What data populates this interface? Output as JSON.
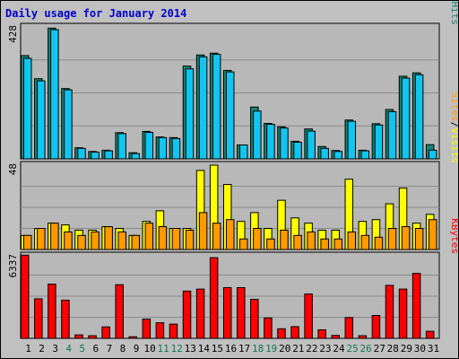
{
  "chart_data": {
    "type": "bar",
    "title": "Daily usage for January 2014",
    "categories": [
      "1",
      "2",
      "3",
      "4",
      "5",
      "6",
      "7",
      "8",
      "9",
      "10",
      "11",
      "12",
      "13",
      "14",
      "15",
      "16",
      "17",
      "18",
      "19",
      "20",
      "21",
      "22",
      "23",
      "24",
      "25",
      "26",
      "27",
      "28",
      "29",
      "30",
      "31"
    ],
    "weekend_days": [
      "4",
      "5",
      "11",
      "12",
      "18",
      "19",
      "25",
      "26"
    ],
    "colors": {
      "background": "#c0c0c0",
      "plot_bg": "#b8b8b8",
      "title": "#0000cc",
      "axis_text": "#000000",
      "weekday_label": "#000000",
      "weekend_label": "#117755",
      "hits": "#118877",
      "files": "#11c5f0",
      "pages": "#22ddff",
      "visits": "#ffff00",
      "sites": "#ff9900",
      "kbytes": "#ff0000"
    },
    "panels": [
      {
        "id": "hits-files-pages",
        "ymax_label": "428",
        "ylim": [
          0,
          428
        ],
        "legend": [
          {
            "text": "Pages",
            "color": "#22ddff"
          },
          {
            "text": "/",
            "color": "#000000"
          },
          {
            "text": "Files",
            "color": "#11c5f0"
          },
          {
            "text": "/",
            "color": "#000000"
          },
          {
            "text": "Hits",
            "color": "#118877"
          }
        ],
        "series": [
          {
            "name": "Hits",
            "values": [
              335,
              260,
              424,
              228,
              36,
              24,
              28,
              85,
              20,
              89,
              71,
              69,
              301,
              337,
              343,
              287,
              45,
              168,
              115,
              104,
              57,
              97,
              40,
              27,
              126,
              28,
              114,
              160,
              268,
              279,
              46
            ]
          },
          {
            "name": "Files",
            "values": [
              326,
              253,
              419,
              224,
              34,
              22,
              26,
              82,
              17,
              86,
              69,
              66,
              292,
              331,
              339,
              282,
              45,
              155,
              112,
              100,
              54,
              90,
              34,
              24,
              122,
              26,
              110,
              153,
              262,
              273,
              28
            ]
          }
        ]
      },
      {
        "id": "visits-sites",
        "ymax_label": "48",
        "ylim": [
          0,
          48
        ],
        "legend": [
          {
            "text": "Sites",
            "color": "#ff9900"
          },
          {
            "text": "/",
            "color": "#000000"
          },
          {
            "text": "Visits",
            "color": "#ffff00"
          }
        ],
        "series": [
          {
            "name": "Visits",
            "values": [
              8,
              12,
              15,
              14,
              11,
              11,
              13,
              12,
              8,
              16,
              22,
              12,
              12,
              45,
              48,
              37,
              16,
              21,
              12,
              28,
              18,
              15,
              11,
              11,
              40,
              16,
              17,
              26,
              35,
              15,
              20
            ]
          },
          {
            "name": "Sites",
            "values": [
              8,
              12,
              15,
              10,
              8,
              10,
              13,
              10,
              8,
              15,
              13,
              12,
              11,
              21,
              15,
              17,
              6,
              12,
              6,
              11,
              8,
              10,
              6,
              6,
              10,
              8,
              7,
              12,
              13,
              12,
              17
            ]
          }
        ]
      },
      {
        "id": "kbytes",
        "ymax_label": "6337",
        "ylim": [
          0,
          6337
        ],
        "legend": [
          {
            "text": "KBytes",
            "color": "#ff0000"
          }
        ],
        "series": [
          {
            "name": "KBytes",
            "values": [
              6250,
              2970,
              4070,
              2870,
              260,
              200,
              860,
              4030,
              120,
              1450,
              1170,
              1070,
              3550,
              3700,
              6060,
              3810,
              3810,
              2930,
              1530,
              720,
              880,
              3330,
              640,
              220,
              1560,
              200,
              1720,
              3980,
              3700,
              4880,
              530
            ]
          }
        ]
      }
    ]
  }
}
